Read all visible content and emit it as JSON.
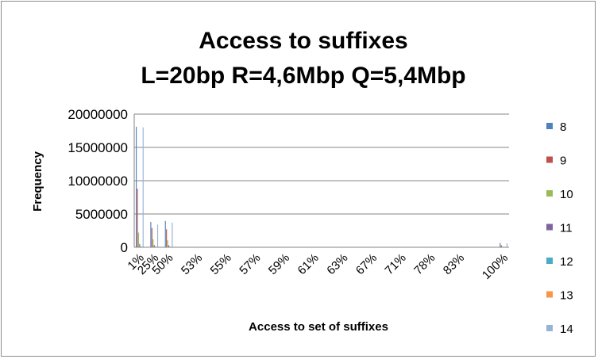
{
  "chart_data": {
    "type": "bar",
    "title_lines": [
      "Access to suffixes",
      "L=20bp R=4,6Mbp Q=5,4Mbp"
    ],
    "xlabel": "Access to set of suffixes",
    "ylabel": "Frequency",
    "ylim": [
      0,
      20000000
    ],
    "yticks": [
      0,
      5000000,
      10000000,
      15000000,
      20000000
    ],
    "grid": true,
    "legend_position": "right",
    "category_count": 26,
    "tick_labels": [
      {
        "index": 0,
        "label": "1%"
      },
      {
        "index": 1,
        "label": "25%"
      },
      {
        "index": 2,
        "label": "50%"
      },
      {
        "index": 4,
        "label": "53%"
      },
      {
        "index": 6,
        "label": "55%"
      },
      {
        "index": 8,
        "label": "57%"
      },
      {
        "index": 10,
        "label": "59%"
      },
      {
        "index": 12,
        "label": "61%"
      },
      {
        "index": 14,
        "label": "63%"
      },
      {
        "index": 16,
        "label": "67%"
      },
      {
        "index": 18,
        "label": "71%"
      },
      {
        "index": 20,
        "label": "78%"
      },
      {
        "index": 22,
        "label": "83%"
      },
      {
        "index": 25,
        "label": "100%"
      }
    ],
    "series": [
      {
        "name": "8",
        "color": "#4f81bd",
        "values": [
          18100000,
          3800000,
          3950000,
          0,
          0,
          0,
          0,
          0,
          0,
          0,
          0,
          0,
          0,
          0,
          0,
          0,
          0,
          0,
          0,
          0,
          0,
          0,
          0,
          0,
          0,
          650000
        ]
      },
      {
        "name": "9",
        "color": "#c0504d",
        "values": [
          8800000,
          2900000,
          2700000,
          0,
          0,
          0,
          0,
          0,
          0,
          0,
          0,
          0,
          0,
          0,
          0,
          0,
          0,
          0,
          0,
          0,
          0,
          0,
          0,
          0,
          0,
          300000
        ]
      },
      {
        "name": "10",
        "color": "#9bbb59",
        "values": [
          2200000,
          1200000,
          1050000,
          0,
          0,
          0,
          0,
          0,
          0,
          0,
          0,
          0,
          0,
          0,
          0,
          0,
          0,
          0,
          0,
          0,
          0,
          0,
          0,
          0,
          0,
          100000
        ]
      },
      {
        "name": "11",
        "color": "#8064a2",
        "values": [
          500000,
          350000,
          300000,
          0,
          0,
          0,
          0,
          0,
          0,
          0,
          0,
          0,
          0,
          0,
          0,
          0,
          0,
          0,
          0,
          0,
          0,
          0,
          0,
          0,
          0,
          30000
        ]
      },
      {
        "name": "12",
        "color": "#4bacc6",
        "values": [
          150000,
          100000,
          90000,
          0,
          0,
          0,
          0,
          0,
          0,
          0,
          0,
          0,
          0,
          0,
          0,
          0,
          0,
          0,
          0,
          0,
          0,
          0,
          0,
          0,
          0,
          10000
        ]
      },
      {
        "name": "13",
        "color": "#f79646",
        "values": [
          60000,
          40000,
          35000,
          0,
          0,
          0,
          0,
          0,
          0,
          0,
          0,
          0,
          0,
          0,
          0,
          0,
          0,
          0,
          0,
          0,
          0,
          0,
          0,
          0,
          0,
          5000
        ]
      },
      {
        "name": "14",
        "color": "#95b3d7",
        "values": [
          18000000,
          3400000,
          3700000,
          0,
          0,
          0,
          0,
          0,
          0,
          0,
          0,
          0,
          0,
          0,
          0,
          0,
          0,
          0,
          0,
          0,
          0,
          0,
          0,
          0,
          0,
          600000
        ]
      }
    ]
  }
}
